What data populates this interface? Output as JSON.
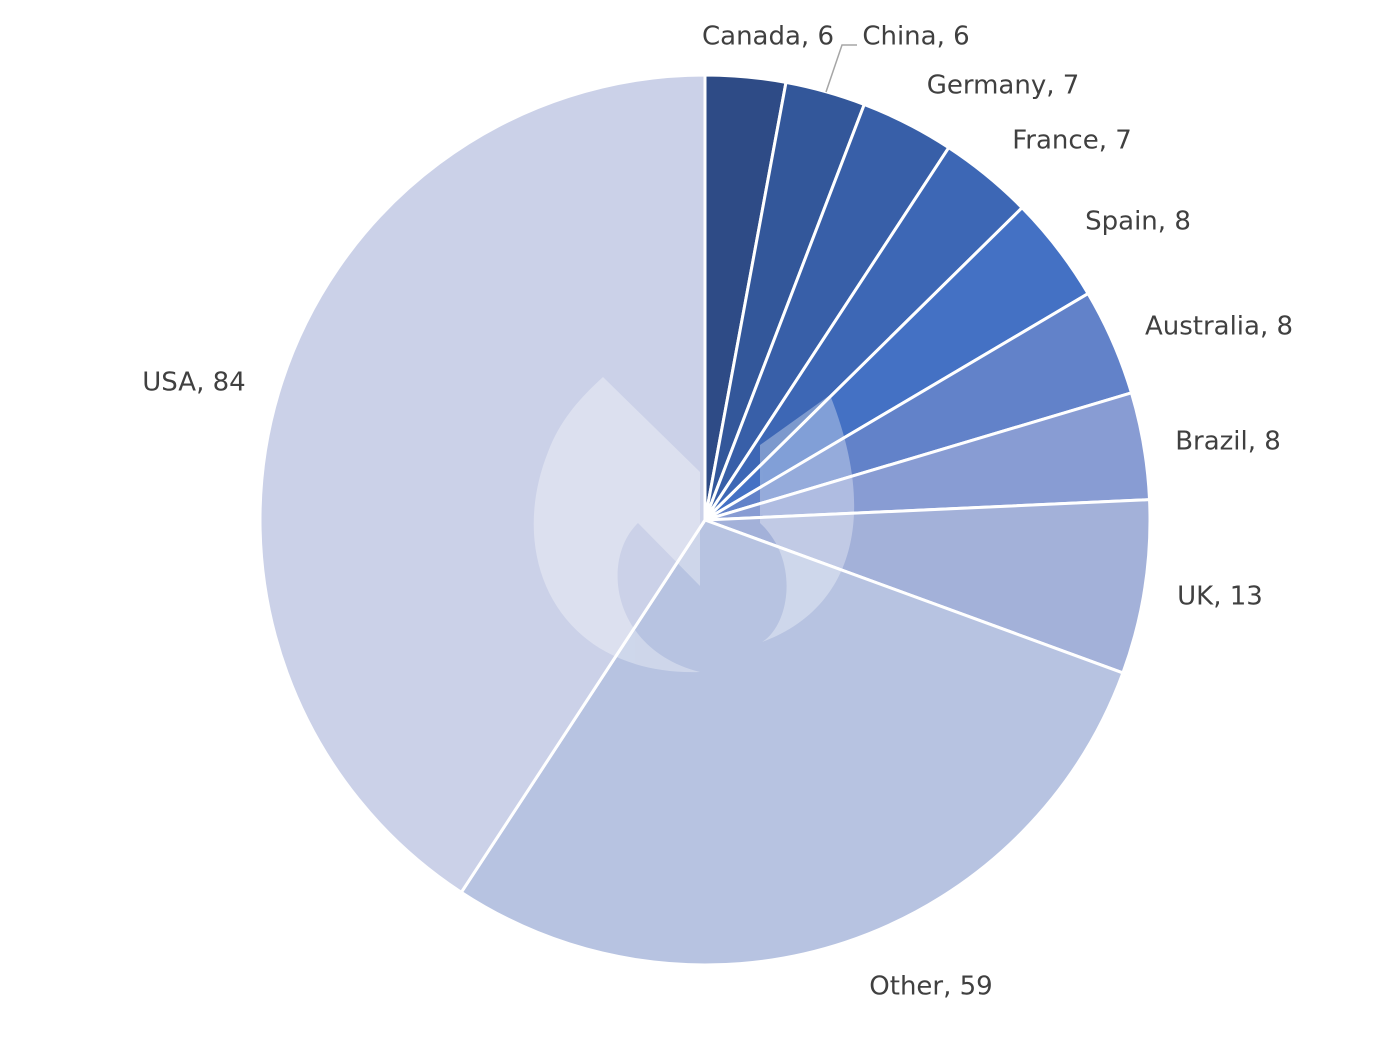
{
  "chart_data": {
    "type": "pie",
    "title": "",
    "categories": [
      "Canada",
      "China",
      "Germany",
      "France",
      "Spain",
      "Australia",
      "Brazil",
      "UK",
      "Other",
      "USA"
    ],
    "values": [
      6,
      6,
      7,
      7,
      8,
      8,
      8,
      13,
      59,
      84
    ],
    "labels": [
      "Canada, 6",
      "China, 6",
      "Germany, 7",
      "France, 7",
      "Spain, 8",
      "Australia, 8",
      "Brazil, 8",
      "UK, 13",
      "Other, 59",
      "USA, 84"
    ],
    "colors": [
      "#2e4b86",
      "#33579a",
      "#385fa8",
      "#3d67b5",
      "#4471c4",
      "#6282c9",
      "#889cd3",
      "#a3b1d9",
      "#b7c3e1",
      "#cbd1e8"
    ],
    "legend": "none",
    "start_angle": "12 o'clock",
    "direction": "clockwise"
  }
}
